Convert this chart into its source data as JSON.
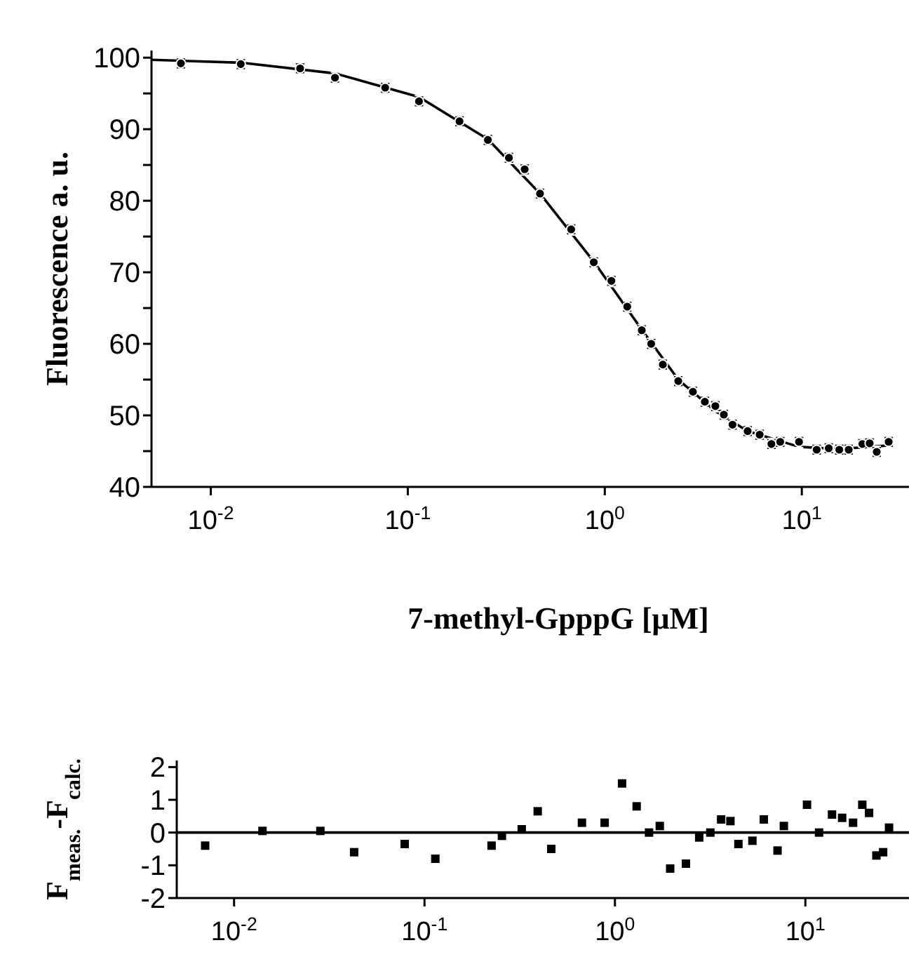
{
  "chart_data": [
    {
      "type": "scatter",
      "xlabel": "7-methyl-GpppG [μM]",
      "ylabel": "Fluorescence  a. u.",
      "log": "x",
      "xlim": [
        0.005,
        35
      ],
      "xticks": [
        {
          "value": 0.01,
          "label": "10$^{-2}$"
        },
        {
          "value": 0.1,
          "label": "10$^{-1}$"
        },
        {
          "value": 1,
          "label": "10$^{0}$"
        },
        {
          "value": 10,
          "label": "10$^{1}$"
        }
      ],
      "ylim": [
        40,
        101
      ],
      "yticks": [
        40,
        {
          "value": 45,
          "label": null
        },
        50,
        {
          "value": 55,
          "label": null
        },
        60,
        {
          "value": 65,
          "label": null
        },
        70,
        {
          "value": 75,
          "label": null
        },
        80,
        {
          "value": 85,
          "label": null
        },
        90,
        {
          "value": 95,
          "label": null
        },
        100
      ],
      "grid": false,
      "series": [
        {
          "color": "#000000",
          "marker": "circle",
          "x": [
            0.00705,
            0.0142,
            0.0284,
            0.0427,
            0.0768,
            0.114,
            0.183,
            0.255,
            0.326,
            0.392,
            0.469,
            0.675,
            0.879,
            1.08,
            1.3,
            1.54,
            1.72,
            1.97,
            2.36,
            2.8,
            3.22,
            3.64,
            4.02,
            4.45,
            5.31,
            6.11,
            7.01,
            7.77,
            9.68,
            11.9,
            13.7,
            15.5,
            17.3,
            20.3,
            22.1,
            24,
            27.6
          ],
          "values": [
            99.2,
            99.1,
            98.5,
            97.2,
            95.8,
            93.9,
            91.1,
            88.5,
            86,
            84.4,
            81,
            76,
            71.4,
            68.8,
            65.2,
            61.9,
            60,
            57.1,
            54.8,
            53.3,
            51.9,
            51.3,
            50.1,
            48.7,
            47.8,
            47.3,
            46,
            46.3,
            46.3,
            45.2,
            45.4,
            45.2,
            45.2,
            46,
            46.1,
            44.9,
            46.3
          ],
          "errors": [
            0.6,
            0.6,
            0.6,
            0.6,
            0.6,
            0.6,
            0.6,
            0.6,
            0.6,
            0.6,
            0.6,
            0.6,
            0.6,
            0.6,
            0.6,
            0.6,
            0.6,
            0.6,
            0.6,
            0.6,
            0.6,
            0.6,
            0.6,
            0.6,
            0.6,
            0.6,
            0.6,
            0.6,
            0.6,
            0.6,
            0.6,
            0.6,
            0.6,
            0.6,
            0.6,
            0.6,
            0.6
          ]
        },
        {
          "type": "line",
          "color": "#000000",
          "line_style": "solid",
          "x": [
            0.005,
            0.0142,
            0.0427,
            0.114,
            0.255,
            0.469,
            0.879,
            1.54,
            2.36,
            3.64,
            5.31,
            9.68,
            15.5,
            27.6
          ],
          "values": [
            99.7,
            99.3,
            97.8,
            94.5,
            88.6,
            81,
            71.5,
            62,
            55,
            50.6,
            47.8,
            45.6,
            45.3,
            45.8
          ]
        }
      ]
    },
    {
      "type": "scatter",
      "ylabel": "F$_{meas.}$-F$_{calc.}$",
      "log": "x",
      "xlim": [
        0.005,
        35
      ],
      "xticks": [
        {
          "value": 0.01,
          "label": "10$^{-2}$"
        },
        {
          "value": 0.1,
          "label": "10$^{-1}$"
        },
        {
          "value": 1,
          "label": "10$^{0}$"
        },
        {
          "value": 10,
          "label": "10$^{1}$"
        }
      ],
      "ylim": [
        -2,
        2.2
      ],
      "yticks": [
        -2,
        -1,
        0,
        1,
        2
      ],
      "grid": false,
      "ref_lines": [
        {
          "axis": "y",
          "value": 0,
          "color": "#000000"
        }
      ],
      "series": [
        {
          "color": "#000000",
          "marker": "square",
          "x": [
            0.00705,
            0.0141,
            0.0284,
            0.0427,
            0.0787,
            0.114,
            0.225,
            0.255,
            0.324,
            0.393,
            0.463,
            0.671,
            0.883,
            1.09,
            1.3,
            1.51,
            1.72,
            1.95,
            2.36,
            2.77,
            3.17,
            3.61,
            4.04,
            4.45,
            5.27,
            6.05,
            7.14,
            7.71,
            10.2,
            11.8,
            13.8,
            15.6,
            17.8,
            19.9,
            21.6,
            23.6,
            25.6,
            27.5
          ],
          "values": [
            -0.4,
            0.05,
            0.05,
            -0.6,
            -0.35,
            -0.8,
            -0.4,
            -0.1,
            0.1,
            0.65,
            -0.5,
            0.3,
            0.3,
            1.5,
            0.8,
            0,
            0.2,
            -1.1,
            -0.95,
            -0.15,
            0,
            0.4,
            0.35,
            -0.35,
            -0.25,
            0.4,
            -0.55,
            0.2,
            0.85,
            0,
            0.55,
            0.45,
            0.3,
            0.85,
            0.6,
            -0.7,
            -0.6,
            0.15
          ]
        }
      ]
    }
  ]
}
